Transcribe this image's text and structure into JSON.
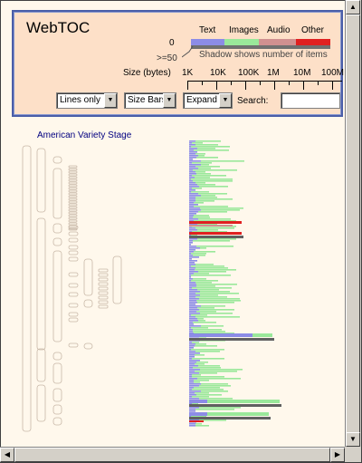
{
  "app": {
    "title": "WebTOC"
  },
  "legend": {
    "text_label": "Text",
    "images_label": "Images",
    "audio_label": "Audio",
    "other_label": "Other",
    "zero_label": "0",
    "max_label": ">=50",
    "shadow_note": "Shadow shows number of items"
  },
  "scale": {
    "label": "Size (bytes)",
    "ticks": [
      "1K",
      "10K",
      "100K",
      "1M",
      "10M",
      "100M"
    ]
  },
  "controls": {
    "display_mode": "Lines only",
    "bar_mode": "Size Bars",
    "expand_mode": "Expand",
    "search_label": "Search:",
    "search_value": ""
  },
  "document": {
    "title": "American Variety Stage"
  },
  "colors": {
    "text": "#8c8ce6",
    "images": "#9ae89a",
    "audio": "#d09090",
    "other": "#e02020",
    "panel_bg": "#fde0c8",
    "panel_border": "#4a5ea8",
    "title_blue": "#000080"
  },
  "icons": {
    "scroll_up": "up-arrow-icon",
    "scroll_down": "down-arrow-icon",
    "scroll_left": "left-arrow-icon",
    "scroll_right": "right-arrow-icon",
    "dropdown": "chevron-down-icon"
  }
}
